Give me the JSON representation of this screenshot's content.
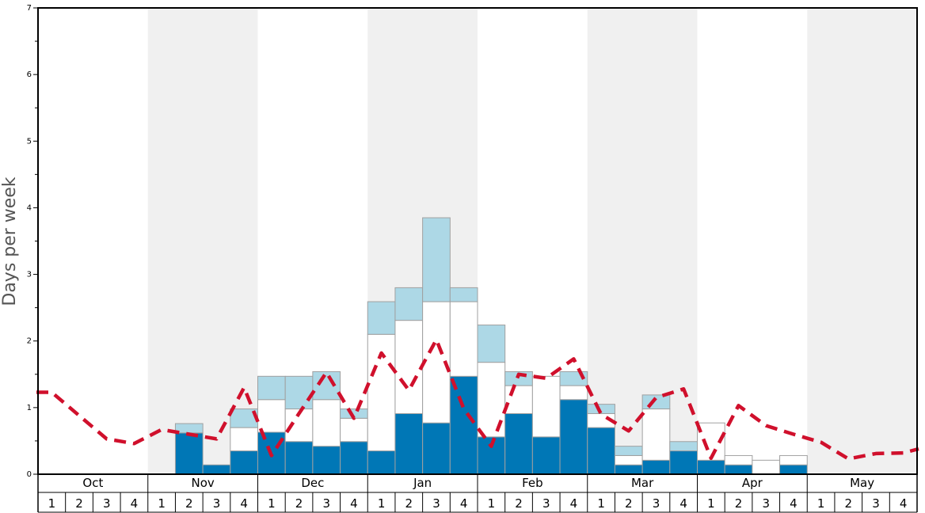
{
  "chart_data": {
    "type": "bar",
    "ylabel": "Days per week",
    "xlabel": "",
    "title": "",
    "ylim": [
      0,
      7
    ],
    "yticks": [
      "0",
      "1",
      "2",
      "3",
      "4",
      "5",
      "6",
      "7"
    ],
    "months": [
      "Oct",
      "Nov",
      "Dec",
      "Jan",
      "Feb",
      "Mar",
      "Apr",
      "May"
    ],
    "week_labels": [
      "1",
      "2",
      "3",
      "4"
    ],
    "stacking": "stacked",
    "colors": {
      "dark": "#0077b6",
      "white": "#ffffff",
      "light": "#add8e6",
      "line": "#d0102c",
      "band": "#f0f0f0"
    },
    "series": [
      {
        "color": "#0077b6",
        "values": [
          0,
          0,
          0,
          0,
          0,
          0.62,
          0.14,
          0.35,
          0.63,
          0.49,
          0.42,
          0.49,
          0.35,
          0.91,
          0.77,
          1.47,
          0.56,
          0.91,
          0.56,
          1.12,
          0.7,
          0.14,
          0.21,
          0.35,
          0.21,
          0.14,
          0,
          0.14,
          0,
          0,
          0,
          0
        ]
      },
      {
        "color": "#ffffff",
        "values": [
          0,
          0,
          0,
          0,
          0,
          0,
          0,
          0.35,
          0.49,
          0.49,
          0.7,
          0.35,
          1.75,
          1.4,
          1.82,
          1.12,
          1.12,
          0.42,
          0.91,
          0.21,
          0.21,
          0.14,
          0.77,
          0,
          0.56,
          0.14,
          0.21,
          0.14,
          0,
          0,
          0,
          0
        ]
      },
      {
        "color": "#add8e6",
        "values": [
          0,
          0,
          0,
          0,
          0,
          0.14,
          0,
          0.28,
          0.35,
          0.49,
          0.42,
          0.14,
          0.49,
          0.49,
          1.26,
          0.21,
          0.56,
          0.21,
          0,
          0.21,
          0.14,
          0.14,
          0.21,
          0.14,
          0,
          0,
          0,
          0,
          0,
          0,
          0,
          0
        ]
      },
      {
        "type": "line",
        "style": "dashed",
        "color": "#d0102c",
        "values": [
          1.23,
          0.88,
          0.53,
          0.46,
          0.67,
          0.6,
          0.53,
          1.3,
          0.28,
          0.91,
          1.53,
          0.84,
          1.82,
          1.26,
          2.02,
          0.98,
          0.42,
          1.5,
          1.44,
          1.73,
          0.9,
          0.65,
          1.15,
          1.28,
          0.24,
          1.03,
          0.73,
          0.6,
          0.48,
          0.23,
          0.31,
          0.32
        ]
      }
    ],
    "extra_points": [
      {
        "position": "right-edge",
        "value": 0.38
      }
    ],
    "grid": false,
    "legend": "none"
  }
}
